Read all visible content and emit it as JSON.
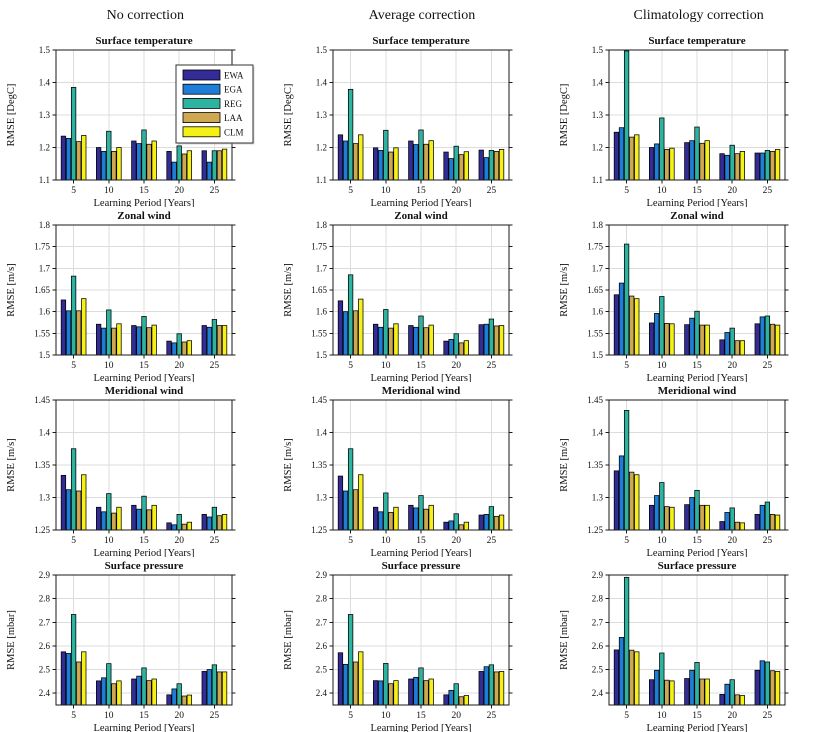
{
  "columns": [
    "No correction",
    "Average correction",
    "Climatology correction"
  ],
  "layout": {
    "rows": 4,
    "cols": 3,
    "grid": true,
    "legend_location": "upper-right-of-first-subplot"
  },
  "legend": {
    "entries": [
      {
        "label": "EWA",
        "color": "#332c96"
      },
      {
        "label": "EGA",
        "color": "#1e7dd7"
      },
      {
        "label": "REG",
        "color": "#2fb3a1"
      },
      {
        "label": "LAA",
        "color": "#d0a852"
      },
      {
        "label": "CLM",
        "color": "#f5f116"
      }
    ]
  },
  "axis_style": {
    "frame_color": "#1a1a1a",
    "grid_color": "#dcdcdc",
    "bar_edge_color": "#000000"
  },
  "chart_data": [
    {
      "type": "bar",
      "row_label": "Surface temperature",
      "column_label": "No correction",
      "title": "Surface temperature",
      "xlabel": "Learning Period [Years]",
      "ylabel": "RMSE [DegC]",
      "ylim": [
        1.1,
        1.5
      ],
      "yticks": [
        1.1,
        1.2,
        1.3,
        1.4,
        1.5
      ],
      "categories": [
        5,
        10,
        15,
        20,
        25
      ],
      "show_legend": true,
      "series": [
        {
          "name": "EWA",
          "values": [
            1.235,
            1.2,
            1.22,
            1.188,
            1.19
          ]
        },
        {
          "name": "EGA",
          "values": [
            1.228,
            1.188,
            1.212,
            1.155,
            1.155
          ]
        },
        {
          "name": "REG",
          "values": [
            1.385,
            1.25,
            1.254,
            1.205,
            1.19
          ]
        },
        {
          "name": "LAA",
          "values": [
            1.218,
            1.188,
            1.21,
            1.18,
            1.19
          ]
        },
        {
          "name": "CLM",
          "values": [
            1.237,
            1.2,
            1.22,
            1.19,
            1.195
          ]
        }
      ]
    },
    {
      "type": "bar",
      "row_label": "Surface temperature",
      "column_label": "Average correction",
      "title": "Surface temperature",
      "xlabel": "Learning Period [Years]",
      "ylabel": "RMSE [DegC]",
      "ylim": [
        1.1,
        1.5
      ],
      "yticks": [
        1.1,
        1.2,
        1.3,
        1.4,
        1.5
      ],
      "categories": [
        5,
        10,
        15,
        20,
        25
      ],
      "show_legend": false,
      "series": [
        {
          "name": "EWA",
          "values": [
            1.239,
            1.199,
            1.22,
            1.186,
            1.192
          ]
        },
        {
          "name": "EGA",
          "values": [
            1.22,
            1.191,
            1.209,
            1.166,
            1.169
          ]
        },
        {
          "name": "REG",
          "values": [
            1.379,
            1.253,
            1.254,
            1.204,
            1.191
          ]
        },
        {
          "name": "LAA",
          "values": [
            1.212,
            1.186,
            1.21,
            1.178,
            1.188
          ]
        },
        {
          "name": "CLM",
          "values": [
            1.239,
            1.199,
            1.221,
            1.187,
            1.194
          ]
        }
      ]
    },
    {
      "type": "bar",
      "row_label": "Surface temperature",
      "column_label": "Climatology correction",
      "title": "Surface temperature",
      "xlabel": "Learning Period [Years]",
      "ylabel": "RMSE [DegC]",
      "ylim": [
        1.1,
        1.5
      ],
      "yticks": [
        1.1,
        1.2,
        1.3,
        1.4,
        1.5
      ],
      "categories": [
        5,
        10,
        15,
        20,
        25
      ],
      "show_legend": false,
      "series": [
        {
          "name": "EWA",
          "values": [
            1.247,
            1.2,
            1.215,
            1.181,
            1.183
          ]
        },
        {
          "name": "EGA",
          "values": [
            1.261,
            1.211,
            1.221,
            1.176,
            1.183
          ]
        },
        {
          "name": "REG",
          "values": [
            1.497,
            1.291,
            1.263,
            1.207,
            1.191
          ]
        },
        {
          "name": "LAA",
          "values": [
            1.232,
            1.194,
            1.213,
            1.181,
            1.188
          ]
        },
        {
          "name": "CLM",
          "values": [
            1.239,
            1.198,
            1.221,
            1.188,
            1.194
          ]
        }
      ]
    },
    {
      "type": "bar",
      "row_label": "Zonal wind",
      "column_label": "No correction",
      "title": "Zonal wind",
      "xlabel": "Learning Period [Years]",
      "ylabel": "RMSE [m/s]",
      "ylim": [
        1.5,
        1.8
      ],
      "yticks": [
        1.5,
        1.55,
        1.6,
        1.65,
        1.7,
        1.75,
        1.8
      ],
      "categories": [
        5,
        10,
        15,
        20,
        25
      ],
      "show_legend": false,
      "series": [
        {
          "name": "EWA",
          "values": [
            1.627,
            1.571,
            1.568,
            1.532,
            1.568
          ]
        },
        {
          "name": "EGA",
          "values": [
            1.602,
            1.562,
            1.565,
            1.528,
            1.564
          ]
        },
        {
          "name": "REG",
          "values": [
            1.682,
            1.604,
            1.589,
            1.549,
            1.582
          ]
        },
        {
          "name": "LAA",
          "values": [
            1.602,
            1.562,
            1.563,
            1.53,
            1.568
          ]
        },
        {
          "name": "CLM",
          "values": [
            1.63,
            1.572,
            1.569,
            1.533,
            1.568
          ]
        }
      ]
    },
    {
      "type": "bar",
      "row_label": "Zonal wind",
      "column_label": "Average correction",
      "title": "Zonal wind",
      "xlabel": "Learning Period [Years]",
      "ylabel": "RMSE [m/s]",
      "ylim": [
        1.5,
        1.8
      ],
      "yticks": [
        1.5,
        1.55,
        1.6,
        1.65,
        1.7,
        1.75,
        1.8
      ],
      "categories": [
        5,
        10,
        15,
        20,
        25
      ],
      "show_legend": false,
      "series": [
        {
          "name": "EWA",
          "values": [
            1.625,
            1.571,
            1.568,
            1.532,
            1.57
          ]
        },
        {
          "name": "EGA",
          "values": [
            1.6,
            1.564,
            1.564,
            1.536,
            1.571
          ]
        },
        {
          "name": "REG",
          "values": [
            1.685,
            1.605,
            1.59,
            1.549,
            1.583
          ]
        },
        {
          "name": "LAA",
          "values": [
            1.602,
            1.562,
            1.563,
            1.528,
            1.567
          ]
        },
        {
          "name": "CLM",
          "values": [
            1.629,
            1.572,
            1.569,
            1.533,
            1.568
          ]
        }
      ]
    },
    {
      "type": "bar",
      "row_label": "Zonal wind",
      "column_label": "Climatology correction",
      "title": "Zonal wind",
      "xlabel": "Learning Period [Years]",
      "ylabel": "RMSE [m/s]",
      "ylim": [
        1.5,
        1.8
      ],
      "yticks": [
        1.5,
        1.55,
        1.6,
        1.65,
        1.7,
        1.75,
        1.8
      ],
      "categories": [
        5,
        10,
        15,
        20,
        25
      ],
      "show_legend": false,
      "series": [
        {
          "name": "EWA",
          "values": [
            1.639,
            1.574,
            1.57,
            1.535,
            1.572
          ]
        },
        {
          "name": "EGA",
          "values": [
            1.666,
            1.596,
            1.585,
            1.552,
            1.588
          ]
        },
        {
          "name": "REG",
          "values": [
            1.756,
            1.635,
            1.601,
            1.562,
            1.59
          ]
        },
        {
          "name": "LAA",
          "values": [
            1.636,
            1.573,
            1.569,
            1.533,
            1.571
          ]
        },
        {
          "name": "CLM",
          "values": [
            1.63,
            1.572,
            1.569,
            1.533,
            1.569
          ]
        }
      ]
    },
    {
      "type": "bar",
      "row_label": "Meridional wind",
      "column_label": "No correction",
      "title": "Meridional wind",
      "xlabel": "Learning Period [Years]",
      "ylabel": "RMSE [m/s]",
      "ylim": [
        1.25,
        1.45
      ],
      "yticks": [
        1.25,
        1.3,
        1.35,
        1.4,
        1.45
      ],
      "categories": [
        5,
        10,
        15,
        20,
        25
      ],
      "show_legend": false,
      "series": [
        {
          "name": "EWA",
          "values": [
            1.334,
            1.285,
            1.288,
            1.261,
            1.274
          ]
        },
        {
          "name": "EGA",
          "values": [
            1.312,
            1.278,
            1.282,
            1.258,
            1.27
          ]
        },
        {
          "name": "REG",
          "values": [
            1.375,
            1.306,
            1.302,
            1.274,
            1.285
          ]
        },
        {
          "name": "LAA",
          "values": [
            1.31,
            1.276,
            1.281,
            1.259,
            1.272
          ]
        },
        {
          "name": "CLM",
          "values": [
            1.335,
            1.285,
            1.288,
            1.262,
            1.274
          ]
        }
      ]
    },
    {
      "type": "bar",
      "row_label": "Meridional wind",
      "column_label": "Average correction",
      "title": "Meridional wind",
      "xlabel": "Learning Period [Years]",
      "ylabel": "RMSE [m/s]",
      "ylim": [
        1.25,
        1.45
      ],
      "yticks": [
        1.25,
        1.3,
        1.35,
        1.4,
        1.45
      ],
      "categories": [
        5,
        10,
        15,
        20,
        25
      ],
      "show_legend": false,
      "series": [
        {
          "name": "EWA",
          "values": [
            1.333,
            1.285,
            1.288,
            1.262,
            1.273
          ]
        },
        {
          "name": "EGA",
          "values": [
            1.31,
            1.278,
            1.284,
            1.264,
            1.274
          ]
        },
        {
          "name": "REG",
          "values": [
            1.375,
            1.307,
            1.303,
            1.275,
            1.286
          ]
        },
        {
          "name": "LAA",
          "values": [
            1.312,
            1.277,
            1.282,
            1.258,
            1.271
          ]
        },
        {
          "name": "CLM",
          "values": [
            1.335,
            1.285,
            1.288,
            1.262,
            1.273
          ]
        }
      ]
    },
    {
      "type": "bar",
      "row_label": "Meridional wind",
      "column_label": "Climatology correction",
      "title": "Meridional wind",
      "xlabel": "Learning Period [Years]",
      "ylabel": "RMSE [m/s]",
      "ylim": [
        1.25,
        1.45
      ],
      "yticks": [
        1.25,
        1.3,
        1.35,
        1.4,
        1.45
      ],
      "categories": [
        5,
        10,
        15,
        20,
        25
      ],
      "show_legend": false,
      "series": [
        {
          "name": "EWA",
          "values": [
            1.341,
            1.288,
            1.289,
            1.263,
            1.274
          ]
        },
        {
          "name": "EGA",
          "values": [
            1.364,
            1.303,
            1.3,
            1.277,
            1.288
          ]
        },
        {
          "name": "REG",
          "values": [
            1.434,
            1.323,
            1.311,
            1.284,
            1.293
          ]
        },
        {
          "name": "LAA",
          "values": [
            1.339,
            1.286,
            1.288,
            1.262,
            1.274
          ]
        },
        {
          "name": "CLM",
          "values": [
            1.335,
            1.285,
            1.288,
            1.261,
            1.273
          ]
        }
      ]
    },
    {
      "type": "bar",
      "row_label": "Surface pressure",
      "column_label": "No correction",
      "title": "Surface pressure",
      "xlabel": "Learning Period [Years]",
      "ylabel": "RMSE [mbar]",
      "ylim": [
        2.35,
        2.9
      ],
      "yticks": [
        2.4,
        2.5,
        2.6,
        2.7,
        2.8,
        2.9
      ],
      "categories": [
        5,
        10,
        15,
        20,
        25
      ],
      "show_legend": false,
      "series": [
        {
          "name": "EWA",
          "values": [
            2.575,
            2.452,
            2.46,
            2.393,
            2.492
          ]
        },
        {
          "name": "EGA",
          "values": [
            2.568,
            2.465,
            2.472,
            2.418,
            2.5
          ]
        },
        {
          "name": "REG",
          "values": [
            2.733,
            2.525,
            2.507,
            2.44,
            2.52
          ]
        },
        {
          "name": "LAA",
          "values": [
            2.532,
            2.44,
            2.453,
            2.388,
            2.49
          ]
        },
        {
          "name": "CLM",
          "values": [
            2.575,
            2.452,
            2.46,
            2.392,
            2.49
          ]
        }
      ]
    },
    {
      "type": "bar",
      "row_label": "Surface pressure",
      "column_label": "Average correction",
      "title": "Surface pressure",
      "xlabel": "Learning Period [Years]",
      "ylabel": "RMSE [mbar]",
      "ylim": [
        2.35,
        2.9
      ],
      "yticks": [
        2.4,
        2.5,
        2.6,
        2.7,
        2.8,
        2.9
      ],
      "categories": [
        5,
        10,
        15,
        20,
        25
      ],
      "show_legend": false,
      "series": [
        {
          "name": "EWA",
          "values": [
            2.571,
            2.453,
            2.46,
            2.393,
            2.492
          ]
        },
        {
          "name": "EGA",
          "values": [
            2.522,
            2.452,
            2.467,
            2.412,
            2.512
          ]
        },
        {
          "name": "REG",
          "values": [
            2.733,
            2.526,
            2.507,
            2.44,
            2.52
          ]
        },
        {
          "name": "LAA",
          "values": [
            2.532,
            2.44,
            2.453,
            2.385,
            2.49
          ]
        },
        {
          "name": "CLM",
          "values": [
            2.575,
            2.453,
            2.46,
            2.39,
            2.492
          ]
        }
      ]
    },
    {
      "type": "bar",
      "row_label": "Surface pressure",
      "column_label": "Climatology correction",
      "title": "Surface pressure",
      "xlabel": "Learning Period [Years]",
      "ylabel": "RMSE [mbar]",
      "ylim": [
        2.35,
        2.9
      ],
      "yticks": [
        2.4,
        2.5,
        2.6,
        2.7,
        2.8,
        2.9
      ],
      "categories": [
        5,
        10,
        15,
        20,
        25
      ],
      "show_legend": false,
      "series": [
        {
          "name": "EWA",
          "values": [
            2.583,
            2.457,
            2.462,
            2.395,
            2.497
          ]
        },
        {
          "name": "EGA",
          "values": [
            2.636,
            2.497,
            2.497,
            2.438,
            2.537
          ]
        },
        {
          "name": "REG",
          "values": [
            2.89,
            2.57,
            2.53,
            2.457,
            2.532
          ]
        },
        {
          "name": "LAA",
          "values": [
            2.582,
            2.455,
            2.46,
            2.393,
            2.495
          ]
        },
        {
          "name": "CLM",
          "values": [
            2.575,
            2.452,
            2.46,
            2.39,
            2.492
          ]
        }
      ]
    }
  ]
}
